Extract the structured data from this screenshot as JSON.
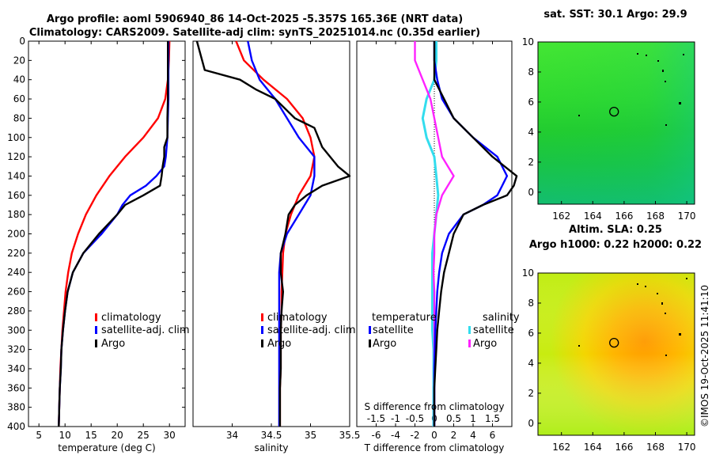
{
  "title": {
    "line1": "Argo profile: aoml 5906940_86 14-Oct-2025 -5.357S 165.36E (NRT data)",
    "line2": "Climatology: CARS2009. Satellite-adj clim: synTS_20251014.nc (0.35d earlier)"
  },
  "copyright": "©IMOS 19-Oct-2025 11:41:10",
  "colors": {
    "climatology": "#ff0000",
    "satellite": "#0000ff",
    "argo": "#000000",
    "t_sat": "#00e5ee",
    "s_sat": "#33ddee",
    "s_argo": "#ff22ff"
  },
  "chart_data": [
    {
      "type": "line",
      "title": "",
      "xlabel": "temperature (deg C)",
      "ylabel": "",
      "xlim": [
        3,
        33
      ],
      "ylim": [
        400,
        0
      ],
      "xticks": [
        "5",
        "10",
        "15",
        "20",
        "25",
        "30"
      ],
      "yticks": [
        "0",
        "20",
        "40",
        "60",
        "80",
        "100",
        "120",
        "140",
        "160",
        "180",
        "200",
        "220",
        "240",
        "260",
        "280",
        "300",
        "320",
        "340",
        "360",
        "380",
        "400"
      ],
      "legend": [
        "climatology",
        "satellite-adj. clim",
        "Argo"
      ],
      "series": [
        {
          "name": "climatology",
          "depth": [
            0,
            20,
            40,
            60,
            80,
            100,
            120,
            140,
            160,
            180,
            200,
            220,
            240,
            260,
            280,
            300,
            320,
            340,
            360,
            380,
            400
          ],
          "values": [
            30,
            29.9,
            29.7,
            29.2,
            27.8,
            25,
            21.5,
            18.5,
            16,
            14,
            12.5,
            11.3,
            10.6,
            10.1,
            9.8,
            9.5,
            9.3,
            9.1,
            9,
            8.9,
            8.8
          ]
        },
        {
          "name": "satellite-adj. clim",
          "depth": [
            0,
            20,
            40,
            60,
            80,
            100,
            120,
            130,
            140,
            150,
            160,
            170,
            180,
            200,
            220,
            240,
            260,
            280,
            300,
            320,
            340,
            360,
            380,
            400
          ],
          "values": [
            29.8,
            29.8,
            29.8,
            29.8,
            29.7,
            29.6,
            29.3,
            29,
            27.5,
            25.5,
            22.5,
            21,
            20,
            17,
            13.5,
            11.5,
            10.5,
            10,
            9.6,
            9.3,
            9.2,
            9,
            8.9,
            8.8
          ]
        },
        {
          "name": "Argo",
          "depth": [
            0,
            20,
            40,
            60,
            80,
            100,
            110,
            120,
            130,
            140,
            150,
            160,
            170,
            180,
            200,
            220,
            240,
            260,
            280,
            300,
            320,
            340,
            360,
            380,
            400
          ],
          "values": [
            29.7,
            29.7,
            29.7,
            29.7,
            29.6,
            29.6,
            29,
            29,
            28.7,
            28.5,
            28.2,
            25,
            21.5,
            20,
            16.5,
            13.5,
            11.5,
            10.5,
            10,
            9.6,
            9.3,
            9.2,
            9,
            8.9,
            8.8
          ]
        }
      ]
    },
    {
      "type": "line",
      "xlabel": "salinity",
      "xlim": [
        33.5,
        35.5
      ],
      "ylim": [
        400,
        0
      ],
      "xticks": [
        "34",
        "34.5",
        "35",
        "35.5"
      ],
      "legend": [
        "climatology",
        "satellite-adj. clim",
        "Argo"
      ],
      "series": [
        {
          "name": "climatology",
          "depth": [
            0,
            20,
            40,
            60,
            80,
            100,
            120,
            140,
            160,
            180,
            200,
            220,
            240,
            260,
            280,
            300,
            320,
            340,
            360,
            380,
            400
          ],
          "values": [
            34.05,
            34.15,
            34.4,
            34.7,
            34.9,
            35.0,
            35.05,
            35.0,
            34.85,
            34.75,
            34.68,
            34.65,
            34.64,
            34.63,
            34.63,
            34.62,
            34.62,
            34.62,
            34.61,
            34.61,
            34.61
          ]
        },
        {
          "name": "satellite-adj. clim",
          "depth": [
            0,
            20,
            40,
            60,
            80,
            100,
            120,
            140,
            160,
            180,
            200,
            220,
            240,
            260,
            280,
            300,
            320,
            340,
            360,
            380,
            400
          ],
          "values": [
            34.2,
            34.25,
            34.35,
            34.55,
            34.7,
            34.85,
            35.05,
            35.05,
            35.0,
            34.85,
            34.7,
            34.62,
            34.6,
            34.6,
            34.6,
            34.6,
            34.6,
            34.6,
            34.6,
            34.6,
            34.6
          ]
        },
        {
          "name": "Argo",
          "depth": [
            0,
            30,
            40,
            50,
            60,
            80,
            90,
            100,
            110,
            120,
            130,
            140,
            150,
            160,
            170,
            180,
            200,
            220,
            240,
            260,
            280,
            300,
            320,
            340,
            360,
            380,
            400
          ],
          "values": [
            33.55,
            33.65,
            34.1,
            34.3,
            34.55,
            34.8,
            35.05,
            35.1,
            35.15,
            35.25,
            35.35,
            35.5,
            35.15,
            34.95,
            34.8,
            34.72,
            34.68,
            34.62,
            34.62,
            34.65,
            34.63,
            34.62,
            34.62,
            34.62,
            34.61,
            34.61,
            34.61
          ]
        }
      ]
    },
    {
      "type": "line",
      "xlabel": "T difference from climatology",
      "x2label": "S difference from climatology",
      "xlim": [
        -8,
        8
      ],
      "x2lim": [
        -2,
        2
      ],
      "ylim": [
        400,
        0
      ],
      "xticks": [
        "-6",
        "-4",
        "-2",
        "0",
        "2",
        "4",
        "6"
      ],
      "x2ticks": [
        "-1.5",
        "-1",
        "-0.5",
        "0",
        "0.5",
        "1",
        "1.5"
      ],
      "legend_temperature_title": "temperature",
      "legend_salinity_title": "salinity",
      "legend": [
        "satellite",
        "Argo",
        "satellite",
        "Argo"
      ],
      "series": [
        {
          "name": "T satellite",
          "depth": [
            0,
            20,
            40,
            60,
            80,
            100,
            120,
            140,
            150,
            160,
            170,
            180,
            200,
            220,
            240,
            260,
            280,
            300,
            320,
            340,
            360,
            380,
            400
          ],
          "values": [
            0,
            0,
            0.3,
            0.8,
            2,
            4,
            6.5,
            7.5,
            7,
            6.5,
            5,
            3,
            1.5,
            0.8,
            0.5,
            0.3,
            0.2,
            0.1,
            0.05,
            0,
            0,
            0,
            0
          ]
        },
        {
          "name": "T Argo",
          "depth": [
            0,
            40,
            60,
            80,
            100,
            120,
            140,
            150,
            160,
            170,
            180,
            200,
            220,
            240,
            260,
            280,
            300,
            320,
            340,
            360,
            380,
            400
          ],
          "values": [
            0,
            0,
            1,
            2,
            4,
            6,
            8.5,
            8.2,
            7.5,
            5,
            3,
            2,
            1.5,
            1,
            0.7,
            0.5,
            0.3,
            0.2,
            0.1,
            0,
            0,
            0
          ]
        },
        {
          "name": "S satellite",
          "depth": [
            0,
            20,
            40,
            60,
            80,
            100,
            120,
            140,
            160,
            180,
            200,
            220,
            240,
            260,
            280,
            300,
            320,
            340,
            360,
            380,
            400
          ],
          "values": [
            0.05,
            0.05,
            0,
            -0.2,
            -0.3,
            -0.2,
            0,
            0.05,
            0.1,
            0.05,
            0,
            -0.05,
            -0.05,
            -0.05,
            -0.05,
            -0.05,
            -0.02,
            -0.02,
            -0.02,
            -0.02,
            -0.02
          ]
        },
        {
          "name": "S Argo",
          "depth": [
            0,
            20,
            40,
            60,
            80,
            100,
            120,
            140,
            160,
            180,
            200,
            220,
            240,
            260,
            280,
            300,
            320,
            340,
            360,
            380,
            400
          ],
          "values": [
            -0.5,
            -0.5,
            -0.3,
            -0.1,
            0,
            0.1,
            0.2,
            0.5,
            0.2,
            0.05,
            0,
            0,
            -0.02,
            0,
            0,
            0,
            0,
            0,
            0,
            0,
            0
          ]
        }
      ]
    },
    {
      "type": "heatmap",
      "title": "sat. SST: 30.1 Argo: 29.9",
      "xticks": [
        "162",
        "164",
        "166",
        "168",
        "170"
      ],
      "yticks": [
        "10",
        "8",
        "6",
        "4",
        "2",
        "0"
      ],
      "xlim": [
        160.5,
        170.5
      ],
      "ylim": [
        -0.8,
        10
      ],
      "marker": {
        "x": 165.36,
        "y": 5.36
      }
    },
    {
      "type": "heatmap",
      "title": "Altim. SLA: 0.25",
      "subtitle": "Argo h1000: 0.22 h2000: 0.22",
      "xticks": [
        "162",
        "164",
        "166",
        "168",
        "170"
      ],
      "yticks": [
        "10",
        "8",
        "6",
        "4",
        "2",
        "0"
      ],
      "xlim": [
        160.5,
        170.5
      ],
      "ylim": [
        -0.8,
        10
      ],
      "marker": {
        "x": 165.36,
        "y": 5.36
      }
    }
  ]
}
